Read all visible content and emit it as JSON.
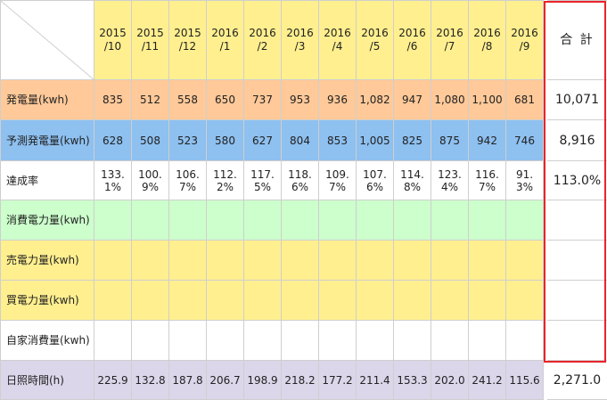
{
  "header": {
    "months": [
      "2015\n/10",
      "2015\n/11",
      "2015\n/12",
      "2016\n/1",
      "2016\n/2",
      "2016\n/3",
      "2016\n/4",
      "2016\n/5",
      "2016\n/6",
      "2016\n/7",
      "2016\n/8",
      "2016\n/9"
    ],
    "total_label": "合 計"
  },
  "rows": [
    {
      "label": "発電量(kwh)",
      "values": [
        "835",
        "512",
        "558",
        "650",
        "737",
        "953",
        "936",
        "1,082",
        "947",
        "1,080",
        "1,100",
        "681"
      ],
      "total": "10,071"
    },
    {
      "label": "予測発電量(kwh)",
      "values": [
        "628",
        "508",
        "523",
        "580",
        "627",
        "804",
        "853",
        "1,005",
        "825",
        "875",
        "942",
        "746"
      ],
      "total": "8,916"
    },
    {
      "label": "達成率",
      "values": [
        "133.\n1%",
        "100.\n9%",
        "106.\n7%",
        "112.\n2%",
        "117.\n5%",
        "118.\n6%",
        "109.\n7%",
        "107.\n6%",
        "114.\n8%",
        "123.\n4%",
        "116.\n7%",
        "91.\n3%"
      ],
      "total": "113.0%"
    },
    {
      "label": "消費電力量(kwh)",
      "values": [
        "",
        "",
        "",
        "",
        "",
        "",
        "",
        "",
        "",
        "",
        "",
        ""
      ],
      "total": ""
    },
    {
      "label": "売電力量(kwh)",
      "values": [
        "",
        "",
        "",
        "",
        "",
        "",
        "",
        "",
        "",
        "",
        "",
        ""
      ],
      "total": ""
    },
    {
      "label": "買電力量(kwh)",
      "values": [
        "",
        "",
        "",
        "",
        "",
        "",
        "",
        "",
        "",
        "",
        "",
        ""
      ],
      "total": ""
    },
    {
      "label": "自家消費量(kwh)",
      "values": [
        "",
        "",
        "",
        "",
        "",
        "",
        "",
        "",
        "",
        "",
        "",
        ""
      ],
      "total": ""
    },
    {
      "label": "日照時間(h)",
      "values": [
        "225.9",
        "132.8",
        "187.8",
        "206.7",
        "198.9",
        "218.2",
        "177.2",
        "211.4",
        "153.3",
        "202.0",
        "241.2",
        "115.6"
      ],
      "total": "2,271.0"
    }
  ],
  "colors": {
    "header_bg": "#ffef8f",
    "generation_bg": "#ffc999",
    "prediction_bg": "#8ec0f0",
    "consumption_bg": "#ccffcc",
    "sell_bg": "#ffef8f",
    "buy_bg": "#ffef8f",
    "sunshine_bg": "#dcd6ea",
    "total_border": "#e8242a",
    "grid": "#cfcfcf"
  }
}
